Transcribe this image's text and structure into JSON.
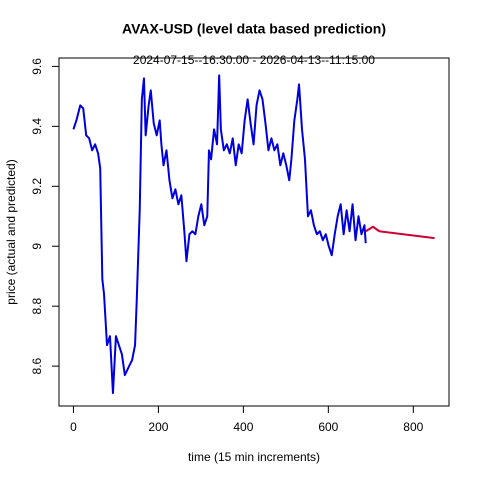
{
  "chart_data": {
    "type": "line",
    "title": "AVAX-USD (level data based prediction)",
    "subtitle": "2024-07-15--16:30:00  -  2026-04-13--11:15:00",
    "x_label": "time (15 min increments)",
    "y_label": "price (actual and predicted)",
    "xlim": [
      -34,
      884
    ],
    "xticks": [
      0,
      200,
      400,
      600,
      800
    ],
    "ylim": [
      8.467,
      9.628
    ],
    "yticks": [
      8.6,
      8.8,
      9.0,
      9.2,
      9.4,
      9.6
    ],
    "series": [
      {
        "color": "#0000dd",
        "x": [
          0,
          7,
          16,
          23,
          30,
          37,
          44,
          51,
          58,
          63,
          68,
          72,
          79,
          86,
          93,
          100,
          107,
          114,
          121,
          131,
          138,
          145,
          149,
          156,
          161,
          166,
          170,
          177,
          182,
          189,
          196,
          203,
          207,
          212,
          219,
          226,
          233,
          240,
          247,
          254,
          261,
          266,
          273,
          280,
          287,
          294,
          301,
          308,
          315,
          319,
          324,
          331,
          338,
          343,
          347,
          354,
          361,
          368,
          375,
          382,
          389,
          396,
          403,
          410,
          417,
          424,
          431,
          438,
          445,
          452,
          459,
          466,
          473,
          480,
          487,
          494,
          501,
          508,
          513,
          520,
          527,
          531,
          538,
          545,
          552,
          559,
          566,
          573,
          580,
          587,
          594,
          601,
          608,
          615,
          622,
          629,
          636,
          643,
          650,
          657,
          664,
          671,
          678,
          685,
          688
        ],
        "values": [
          9.39,
          9.42,
          9.47,
          9.46,
          9.37,
          9.36,
          9.32,
          9.34,
          9.31,
          9.26,
          8.89,
          8.84,
          8.67,
          8.7,
          8.51,
          8.7,
          8.67,
          8.64,
          8.57,
          8.6,
          8.62,
          8.67,
          8.82,
          9.12,
          9.49,
          9.56,
          9.37,
          9.47,
          9.52,
          9.41,
          9.37,
          9.42,
          9.34,
          9.27,
          9.32,
          9.22,
          9.16,
          9.19,
          9.14,
          9.17,
          9.05,
          8.95,
          9.04,
          9.05,
          9.04,
          9.1,
          9.14,
          9.07,
          9.1,
          9.32,
          9.29,
          9.39,
          9.34,
          9.57,
          9.39,
          9.32,
          9.34,
          9.31,
          9.36,
          9.27,
          9.34,
          9.31,
          9.42,
          9.49,
          9.41,
          9.34,
          9.47,
          9.52,
          9.49,
          9.41,
          9.32,
          9.36,
          9.32,
          9.34,
          9.27,
          9.31,
          9.27,
          9.22,
          9.29,
          9.42,
          9.49,
          9.54,
          9.39,
          9.29,
          9.1,
          9.12,
          9.07,
          9.04,
          9.05,
          9.02,
          9.04,
          9.0,
          8.97,
          9.04,
          9.1,
          9.14,
          9.04,
          9.12,
          9.05,
          9.14,
          9.02,
          9.1,
          9.04,
          9.07,
          9.01
        ]
      },
      {
        "color": "#cc0033",
        "x": [
          688,
          705,
          720,
          850
        ],
        "values": [
          9.05,
          9.065,
          9.05,
          9.027
        ]
      }
    ]
  }
}
